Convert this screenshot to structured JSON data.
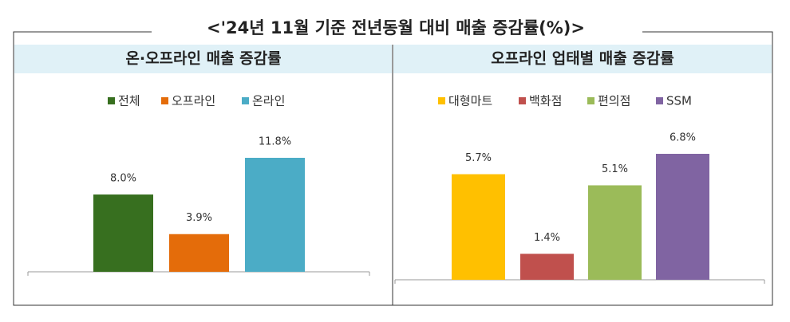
{
  "title": "<'24년 11월 기준 전년동월 대비 매출 증감률(%)>",
  "chart_data": [
    {
      "type": "bar",
      "title": "온·오프라인 매출 증감률",
      "series": [
        {
          "name": "전체",
          "color": "#376f1f",
          "values": [
            8.0
          ],
          "value_labels": [
            "8.0%"
          ]
        },
        {
          "name": "오프라인",
          "color": "#e46c0a",
          "values": [
            3.9
          ],
          "value_labels": [
            "3.9%"
          ]
        },
        {
          "name": "온라인",
          "color": "#4bacc6",
          "values": [
            11.8
          ],
          "value_labels": [
            "11.8%"
          ]
        }
      ]
    },
    {
      "type": "bar",
      "title": "오프라인 업태별 매출 증감률",
      "series": [
        {
          "name": "대형마트",
          "color": "#ffc000",
          "values": [
            5.7
          ],
          "value_labels": [
            "5.7%"
          ]
        },
        {
          "name": "백화점",
          "color": "#c0504d",
          "values": [
            1.4
          ],
          "value_labels": [
            "1.4%"
          ]
        },
        {
          "name": "편의점",
          "color": "#9bbb59",
          "values": [
            5.1
          ],
          "value_labels": [
            "5.1%"
          ]
        },
        {
          "name": "SSM",
          "color": "#8064a2",
          "values": [
            6.8
          ],
          "value_labels": [
            "6.8%"
          ]
        }
      ]
    }
  ]
}
